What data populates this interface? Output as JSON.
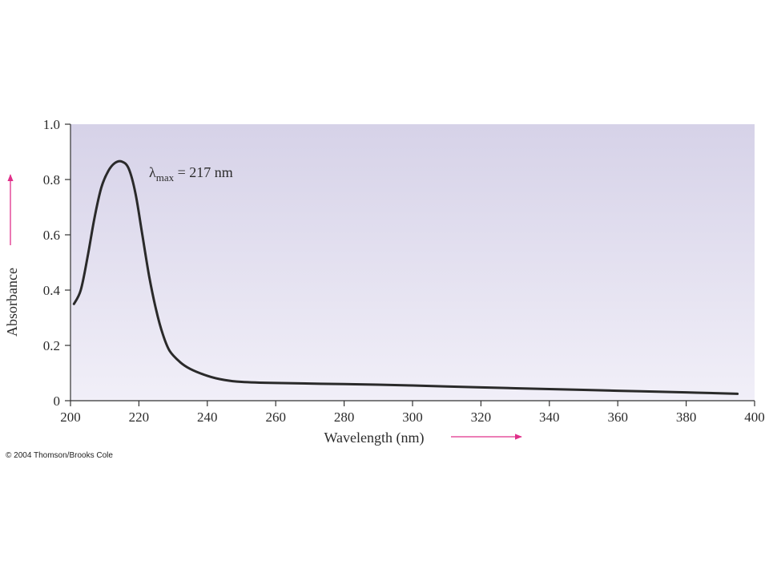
{
  "chart_data": {
    "type": "line",
    "xlabel": "Wavelength (nm)",
    "ylabel": "Absorbance",
    "xlim": [
      200,
      400
    ],
    "ylim": [
      0,
      1.0
    ],
    "x_ticks": [
      200,
      220,
      240,
      260,
      280,
      300,
      320,
      340,
      360,
      380,
      400
    ],
    "y_ticks": [
      0,
      0.2,
      0.4,
      0.6,
      0.8,
      1.0
    ],
    "y_tick_labels": [
      "0",
      "0.2",
      "0.4",
      "0.6",
      "0.8",
      "1.0"
    ],
    "series": [
      {
        "x": [
          201,
          203,
          205,
          207,
          209,
          211,
          213,
          215,
          217,
          219,
          221,
          223,
          225,
          227,
          229,
          232,
          235,
          240,
          245,
          250,
          260,
          280,
          300,
          320,
          340,
          360,
          380,
          395
        ],
        "y": [
          0.35,
          0.4,
          0.52,
          0.66,
          0.77,
          0.83,
          0.86,
          0.865,
          0.84,
          0.75,
          0.6,
          0.45,
          0.33,
          0.24,
          0.18,
          0.14,
          0.115,
          0.09,
          0.075,
          0.068,
          0.064,
          0.06,
          0.055,
          0.048,
          0.042,
          0.036,
          0.03,
          0.025
        ]
      }
    ],
    "annotation": {
      "lambda": "λ",
      "subscript": "max",
      "text": " = 217 nm",
      "x": 217,
      "y": 0.83
    },
    "background_color": "#dcd8ec",
    "line_color": "#2a2a2a",
    "arrow_color": "#e0308a"
  },
  "copyright": "© 2004 Thomson/Brooks Cole"
}
